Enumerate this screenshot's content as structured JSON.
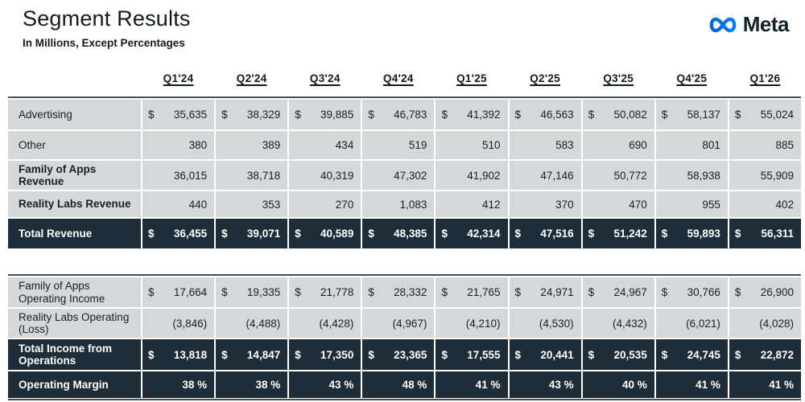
{
  "page": {
    "title": "Segment Results",
    "subtitle": "In Millions, Except Percentages",
    "brand_name": "Meta"
  },
  "columns": [
    "Q1'24",
    "Q2'24",
    "Q3'24",
    "Q4'24",
    "Q1'25",
    "Q2'25",
    "Q3'25",
    "Q4'25",
    "Q1'26"
  ],
  "tables": [
    {
      "name": "revenue",
      "rows": [
        {
          "label": "Advertising",
          "style": "light",
          "bold_label": false,
          "dollar": true,
          "values": [
            "35,635",
            "38,329",
            "39,885",
            "46,783",
            "41,392",
            "46,563",
            "50,082",
            "58,137",
            "55,024"
          ]
        },
        {
          "label": "Other",
          "style": "light",
          "bold_label": false,
          "dollar": false,
          "values": [
            "380",
            "389",
            "434",
            "519",
            "510",
            "583",
            "690",
            "801",
            "885"
          ]
        },
        {
          "label": "Family of Apps Revenue",
          "style": "light",
          "bold_label": true,
          "dollar": false,
          "values": [
            "36,015",
            "38,718",
            "40,319",
            "47,302",
            "41,902",
            "47,146",
            "50,772",
            "58,938",
            "55,909"
          ]
        },
        {
          "label": "Reality Labs Revenue",
          "style": "light",
          "bold_label": true,
          "dollar": false,
          "values": [
            "440",
            "353",
            "270",
            "1,083",
            "412",
            "370",
            "470",
            "955",
            "402"
          ]
        },
        {
          "label": "Total Revenue",
          "style": "dark",
          "bold_label": true,
          "dollar": true,
          "values": [
            "36,455",
            "39,071",
            "40,589",
            "48,385",
            "42,314",
            "47,516",
            "51,242",
            "59,893",
            "56,311"
          ]
        }
      ]
    },
    {
      "name": "operating",
      "rows": [
        {
          "label": "Family of Apps Operating Income",
          "style": "light",
          "bold_label": false,
          "dollar": true,
          "values": [
            "17,664",
            "19,335",
            "21,778",
            "28,332",
            "21,765",
            "24,971",
            "24,967",
            "30,766",
            "26,900"
          ]
        },
        {
          "label": "Reality Labs Operating (Loss)",
          "style": "light",
          "bold_label": false,
          "dollar": false,
          "values": [
            "(3,846)",
            "(4,488)",
            "(4,428)",
            "(4,967)",
            "(4,210)",
            "(4,530)",
            "(4,432)",
            "(6,021)",
            "(4,028)"
          ]
        },
        {
          "label": "Total Income from Operations",
          "style": "dark",
          "bold_label": true,
          "dollar": true,
          "values": [
            "13,818",
            "14,847",
            "17,350",
            "23,365",
            "17,555",
            "20,441",
            "20,535",
            "24,745",
            "22,872"
          ]
        },
        {
          "label": "Operating Margin",
          "style": "dark",
          "bold_label": true,
          "dollar": false,
          "values": [
            "38 %",
            "38 %",
            "43 %",
            "48 %",
            "41 %",
            "43 %",
            "40 %",
            "41 %",
            "41 %"
          ]
        }
      ]
    }
  ],
  "symbols": {
    "dollar": "$"
  },
  "colors": {
    "dark_row": "#1E2D37",
    "light_row": "#D6D7D8",
    "border_line": "#4B4F54",
    "meta_blue_start": "#0064E0",
    "meta_blue_end": "#0082FB",
    "text_dark": "#16191C"
  }
}
